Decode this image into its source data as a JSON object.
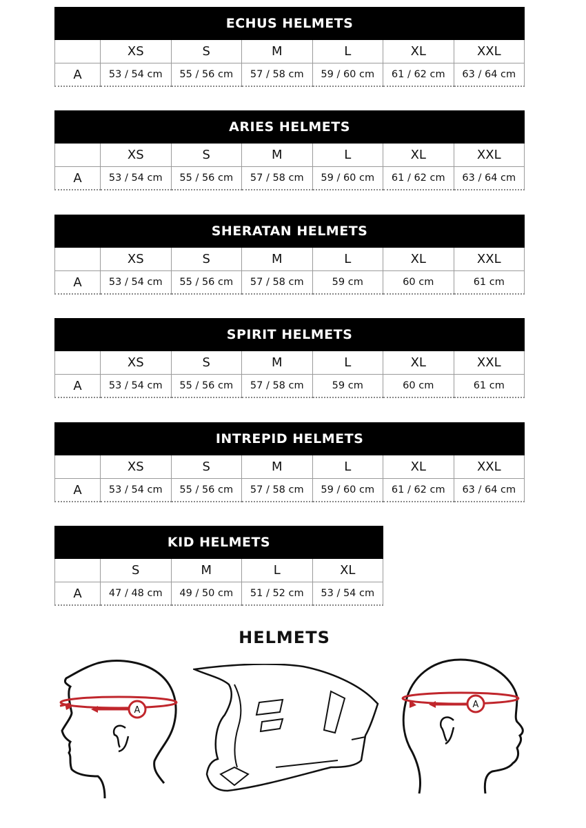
{
  "tables": [
    {
      "title": "ECHUS HELMETS",
      "sizes": [
        "XS",
        "S",
        "M",
        "L",
        "XL",
        "XXL"
      ],
      "row_label": "A",
      "values": [
        "53 / 54 cm",
        "55 / 56 cm",
        "57 / 58 cm",
        "59 / 60 cm",
        "61 / 62 cm",
        "63 / 64 cm"
      ]
    },
    {
      "title": "ARIES HELMETS",
      "sizes": [
        "XS",
        "S",
        "M",
        "L",
        "XL",
        "XXL"
      ],
      "row_label": "A",
      "values": [
        "53 / 54 cm",
        "55 / 56 cm",
        "57 / 58 cm",
        "59 / 60 cm",
        "61 / 62 cm",
        "63 / 64 cm"
      ]
    },
    {
      "title": "SHERATAN HELMETS",
      "sizes": [
        "XS",
        "S",
        "M",
        "L",
        "XL",
        "XXL"
      ],
      "row_label": "A",
      "values": [
        "53 / 54 cm",
        "55 / 56 cm",
        "57 / 58 cm",
        "59 cm",
        "60 cm",
        "61 cm"
      ]
    },
    {
      "title": "SPIRIT HELMETS",
      "sizes": [
        "XS",
        "S",
        "M",
        "L",
        "XL",
        "XXL"
      ],
      "row_label": "A",
      "values": [
        "53 / 54 cm",
        "55 / 56 cm",
        "57 / 58 cm",
        "59 cm",
        "60 cm",
        "61 cm"
      ]
    },
    {
      "title": "INTREPID HELMETS",
      "sizes": [
        "XS",
        "S",
        "M",
        "L",
        "XL",
        "XXL"
      ],
      "row_label": "A",
      "values": [
        "53 / 54 cm",
        "55 / 56 cm",
        "57 / 58 cm",
        "59 / 60 cm",
        "61 / 62 cm",
        "63 / 64 cm"
      ]
    },
    {
      "title": "KID HELMETS",
      "sizes": [
        "S",
        "M",
        "L",
        "XL"
      ],
      "row_label": "A",
      "values": [
        "47 / 48 cm",
        "49 / 50 cm",
        "51 / 52 cm",
        "53 / 54 cm"
      ]
    }
  ],
  "diagram": {
    "title": "HELMETS",
    "marker_label": "A",
    "accent_color": "#c0262c"
  }
}
